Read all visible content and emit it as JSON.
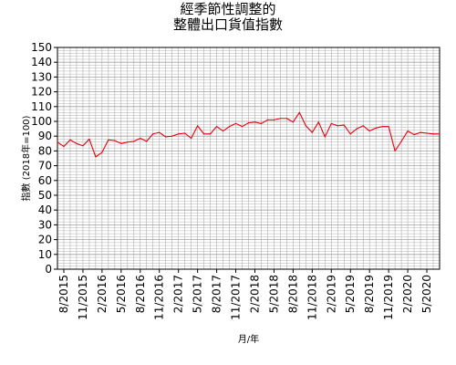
{
  "chart_data": {
    "type": "line",
    "title": [
      "經季節性調整的",
      "整體出口貨值指數"
    ],
    "xlabel": "月/年",
    "ylabel": "指數 (2018年=100)",
    "ylim": [
      0,
      150
    ],
    "yticks": [
      0,
      10,
      20,
      30,
      40,
      50,
      60,
      70,
      80,
      90,
      100,
      110,
      120,
      130,
      140,
      150
    ],
    "grid": true,
    "legend": "none",
    "colors": {
      "line": "#e8000b",
      "grid": "#a0a0a0",
      "axis": "#000000"
    },
    "x_tick_labels": [
      "8/2015",
      "11/2015",
      "2/2016",
      "5/2016",
      "8/2016",
      "11/2016",
      "2/2017",
      "5/2017",
      "8/2017",
      "11/2017",
      "2/2018",
      "5/2018",
      "8/2018",
      "11/2018",
      "2/2019",
      "5/2019",
      "8/2019",
      "11/2019",
      "2/2020",
      "5/2020"
    ],
    "x": [
      "7/2015",
      "8/2015",
      "9/2015",
      "10/2015",
      "11/2015",
      "12/2015",
      "1/2016",
      "2/2016",
      "3/2016",
      "4/2016",
      "5/2016",
      "6/2016",
      "7/2016",
      "8/2016",
      "9/2016",
      "10/2016",
      "11/2016",
      "12/2016",
      "1/2017",
      "2/2017",
      "3/2017",
      "4/2017",
      "5/2017",
      "6/2017",
      "7/2017",
      "8/2017",
      "9/2017",
      "10/2017",
      "11/2017",
      "12/2017",
      "1/2018",
      "2/2018",
      "3/2018",
      "4/2018",
      "5/2018",
      "6/2018",
      "7/2018",
      "8/2018",
      "9/2018",
      "10/2018",
      "11/2018",
      "12/2018",
      "1/2019",
      "2/2019",
      "3/2019",
      "4/2019",
      "5/2019",
      "6/2019",
      "7/2019",
      "8/2019",
      "9/2019",
      "10/2019",
      "11/2019",
      "12/2019",
      "1/2020",
      "2/2020",
      "3/2020",
      "4/2020",
      "5/2020",
      "6/2020",
      "7/2020"
    ],
    "series": [
      {
        "values": [
          86,
          83,
          87.5,
          85,
          83.5,
          88,
          76,
          79,
          87.5,
          87,
          85,
          86,
          86.5,
          88.5,
          86.5,
          91.5,
          92.5,
          89.5,
          90,
          91.5,
          92,
          88.5,
          97,
          91.5,
          91.5,
          96.5,
          93.5,
          96.5,
          98.5,
          96.5,
          99,
          99.5,
          98.5,
          101,
          101,
          102,
          102,
          99.5,
          106,
          97,
          92.5,
          99.5,
          89.5,
          98.5,
          97,
          97.5,
          91.5,
          95,
          97,
          93.5,
          95.5,
          96.5,
          96.5,
          80,
          86.5,
          93.5,
          91,
          92.5,
          92,
          91.5,
          91.5
        ]
      }
    ]
  }
}
